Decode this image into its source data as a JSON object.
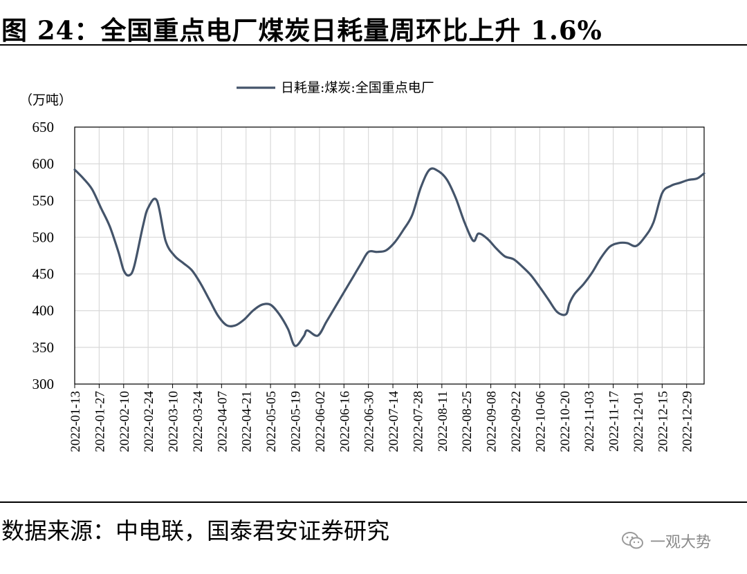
{
  "figure": {
    "title": "图 24：全国重点电厂煤炭日耗量周环比上升 1.6%",
    "source": "数据来源：中电联，国泰君安证券研究",
    "watermark": "一观大势"
  },
  "chart_data": {
    "type": "line",
    "unit_label": "（万吨）",
    "ylim": [
      300,
      650
    ],
    "yticks": [
      300,
      350,
      400,
      450,
      500,
      550,
      600,
      650
    ],
    "grid": true,
    "legend_position": "top-center",
    "x_tick_labels": [
      "2022-01-13",
      "2022-01-27",
      "2022-02-10",
      "2022-02-24",
      "2022-03-10",
      "2022-03-24",
      "2022-04-07",
      "2022-04-21",
      "2022-05-05",
      "2022-05-19",
      "2022-06-02",
      "2022-06-16",
      "2022-06-30",
      "2022-07-14",
      "2022-07-28",
      "2022-08-11",
      "2022-08-25",
      "2022-09-08",
      "2022-09-22",
      "2022-10-06",
      "2022-10-20",
      "2022-11-03",
      "2022-11-17",
      "2022-12-01",
      "2022-12-15",
      "2022-12-29"
    ],
    "colors": {
      "line": "#44546a",
      "grid": "#d9d9d9"
    },
    "series": [
      {
        "name": "日耗量:煤炭:全国重点电厂",
        "x": [
          "2022-01-13",
          "2022-01-18",
          "2022-01-23",
          "2022-01-28",
          "2022-02-02",
          "2022-02-07",
          "2022-02-10",
          "2022-02-13",
          "2022-02-16",
          "2022-02-21",
          "2022-02-24",
          "2022-03-01",
          "2022-03-06",
          "2022-03-11",
          "2022-03-16",
          "2022-03-21",
          "2022-03-26",
          "2022-03-31",
          "2022-04-05",
          "2022-04-10",
          "2022-04-15",
          "2022-04-20",
          "2022-04-25",
          "2022-04-30",
          "2022-05-05",
          "2022-05-10",
          "2022-05-15",
          "2022-05-19",
          "2022-05-24",
          "2022-05-26",
          "2022-06-01",
          "2022-06-06",
          "2022-06-11",
          "2022-06-16",
          "2022-06-21",
          "2022-06-26",
          "2022-06-30",
          "2022-07-05",
          "2022-07-10",
          "2022-07-15",
          "2022-07-20",
          "2022-07-25",
          "2022-07-30",
          "2022-08-04",
          "2022-08-09",
          "2022-08-14",
          "2022-08-19",
          "2022-08-24",
          "2022-08-29",
          "2022-09-01",
          "2022-09-06",
          "2022-09-11",
          "2022-09-16",
          "2022-09-21",
          "2022-09-26",
          "2022-10-01",
          "2022-10-06",
          "2022-10-11",
          "2022-10-16",
          "2022-10-21",
          "2022-10-23",
          "2022-10-26",
          "2022-10-31",
          "2022-11-05",
          "2022-11-10",
          "2022-11-15",
          "2022-11-20",
          "2022-11-25",
          "2022-11-30",
          "2022-12-05",
          "2022-12-10",
          "2022-12-15",
          "2022-12-20",
          "2022-12-25",
          "2022-12-30",
          "2023-01-04",
          "2023-01-08"
        ],
        "values": [
          592,
          580,
          565,
          540,
          515,
          480,
          455,
          448,
          460,
          515,
          540,
          550,
          495,
          475,
          465,
          455,
          437,
          415,
          393,
          380,
          380,
          388,
          400,
          408,
          408,
          395,
          375,
          352,
          365,
          373,
          366,
          385,
          405,
          425,
          445,
          465,
          480,
          480,
          482,
          493,
          510,
          530,
          568,
          592,
          590,
          578,
          553,
          520,
          495,
          505,
          498,
          485,
          474,
          470,
          460,
          448,
          432,
          415,
          398,
          395,
          410,
          423,
          436,
          452,
          472,
          487,
          492,
          492,
          488,
          500,
          520,
          560,
          570,
          574,
          578,
          580,
          587
        ]
      }
    ]
  }
}
